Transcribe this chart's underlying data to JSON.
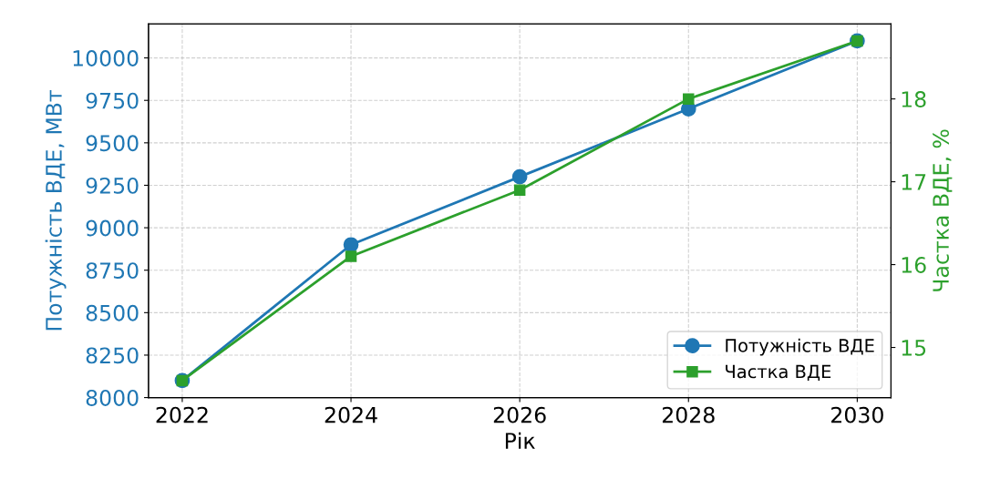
{
  "chart_data": {
    "type": "line",
    "xlabel": "Рік",
    "ylabel": "Потужність ВДЕ, МВт",
    "y2label": "Частка ВДЕ, %",
    "x": [
      2022,
      2024,
      2026,
      2028,
      2030
    ],
    "series": [
      {
        "name": "Потужність ВДЕ",
        "color": "#1f77b4",
        "marker": "circle",
        "values": [
          8100,
          8900,
          9300,
          9700,
          10100
        ]
      },
      {
        "name": "Частка ВДЕ",
        "color": "#2ca02c",
        "marker": "square",
        "axis": "y2",
        "values": [
          14.6,
          16.1,
          16.9,
          18.0,
          18.7
        ]
      }
    ],
    "xlim": [
      2021.6,
      2030.4
    ],
    "xticks": [
      2022,
      2024,
      2026,
      2028,
      2030
    ],
    "ylim": [
      8000,
      10200
    ],
    "yticks": [
      8000,
      8250,
      8500,
      8750,
      9000,
      9250,
      9500,
      9750,
      10000
    ],
    "y2lim": [
      14.395,
      18.905
    ],
    "y2ticks": [
      15,
      16,
      17,
      18
    ],
    "grid": true,
    "line_style": "solid",
    "legend": "bottom right"
  }
}
